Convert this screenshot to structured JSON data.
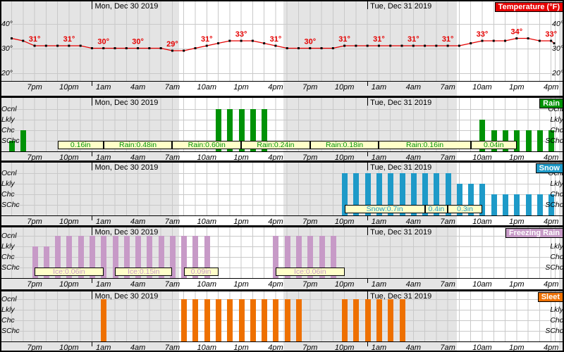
{
  "chart_data": {
    "type": "multi-panel weather timeline (line + bars)",
    "time_axis": {
      "ticks": [
        {
          "hour": 2,
          "label": "7pm"
        },
        {
          "hour": 5,
          "label": "10pm"
        },
        {
          "hour": 8,
          "label": "1am"
        },
        {
          "hour": 11,
          "label": "4am"
        },
        {
          "hour": 14,
          "label": "7am"
        },
        {
          "hour": 17,
          "label": "10am"
        },
        {
          "hour": 20,
          "label": "1pm"
        },
        {
          "hour": 23,
          "label": "4pm"
        },
        {
          "hour": 26,
          "label": "7pm"
        },
        {
          "hour": 29,
          "label": "10pm"
        },
        {
          "hour": 32,
          "label": "1am"
        },
        {
          "hour": 35,
          "label": "4am"
        },
        {
          "hour": 38,
          "label": "7am"
        },
        {
          "hour": 41,
          "label": "10am"
        },
        {
          "hour": 44,
          "label": "1pm"
        },
        {
          "hour": 47,
          "label": "4pm"
        }
      ],
      "day_headers": [
        {
          "hour": 7,
          "label": "Mon, Dec 30 2019"
        },
        {
          "hour": 31,
          "label": "Tue, Dec 31 2019"
        }
      ],
      "night_spans_hours": [
        [
          -1.1,
          14.6
        ],
        [
          23.7,
          38.8
        ],
        [
          47.7,
          50
        ]
      ]
    },
    "probability_categories": [
      "Ocnl",
      "Lkly",
      "Chc",
      "SChc"
    ],
    "panels": [
      {
        "id": "temperature",
        "title": "Temperature (°F)",
        "type": "line",
        "color": "#e60000",
        "unit": "°",
        "y_ticks": [
          {
            "label": "40°",
            "value": 40
          },
          {
            "label": "30°",
            "value": 30
          },
          {
            "label": "20°",
            "value": 20
          }
        ],
        "temps_hourly": [
          34,
          33,
          31,
          31,
          31,
          31,
          31,
          30,
          30,
          30,
          30,
          30,
          30,
          30,
          29,
          29,
          30,
          31,
          32,
          33,
          33,
          33,
          32,
          31,
          30,
          30,
          30,
          30,
          30,
          31,
          31,
          31,
          31,
          31,
          31,
          31,
          31,
          31,
          31,
          31,
          32,
          33,
          33,
          33,
          34,
          34,
          33,
          33,
          32
        ],
        "label_hours": [
          2,
          5,
          8,
          11,
          14,
          17,
          20,
          23,
          26,
          29,
          32,
          35,
          38,
          41,
          44,
          47
        ]
      },
      {
        "id": "rain",
        "title": "Rain",
        "type": "bars",
        "color": "#009206",
        "bar_runs": [
          {
            "from": 0,
            "to": 0,
            "level": "SChc"
          },
          {
            "from": 1,
            "to": 1,
            "level": "Chc"
          },
          {
            "from": 18,
            "to": 22,
            "level": "Ocnl"
          },
          {
            "from": 41,
            "to": 41,
            "level": "Lkly"
          },
          {
            "from": 42,
            "to": 47,
            "level": "Chc"
          }
        ],
        "amount_boxes": [
          {
            "from": 4,
            "to": 8,
            "text": "0.16in"
          },
          {
            "from": 8,
            "to": 14,
            "text": "Rain:0.48in"
          },
          {
            "from": 14,
            "to": 20,
            "text": "Rain:0.60in"
          },
          {
            "from": 20,
            "to": 26,
            "text": "Rain:0.24in"
          },
          {
            "from": 26,
            "to": 32,
            "text": "Rain:0.18in"
          },
          {
            "from": 32,
            "to": 40,
            "text": "Rain:0.16in"
          },
          {
            "from": 40,
            "to": 44,
            "text": "0.04in"
          }
        ]
      },
      {
        "id": "snow",
        "title": "Snow",
        "type": "bars",
        "color": "#1e9ac8",
        "bar_runs": [
          {
            "from": 29,
            "to": 38,
            "level": "Ocnl"
          },
          {
            "from": 39,
            "to": 41,
            "level": "Lkly"
          },
          {
            "from": 42,
            "to": 47,
            "level": "Chc"
          }
        ],
        "amount_boxes": [
          {
            "from": 29,
            "to": 36,
            "text": "Snow:0.7in"
          },
          {
            "from": 36,
            "to": 38,
            "text": "0.4in"
          },
          {
            "from": 38,
            "to": 41,
            "text": "0.3in"
          }
        ]
      },
      {
        "id": "freezing-rain",
        "title": "Freezing Rain",
        "type": "bars",
        "color": "#c79ac7",
        "bar_runs": [
          {
            "from": 2,
            "to": 3,
            "level": "Lkly"
          },
          {
            "from": 4,
            "to": 17,
            "level": "Ocnl"
          },
          {
            "from": 23,
            "to": 28,
            "level": "Ocnl"
          }
        ],
        "amount_boxes": [
          {
            "from": 2,
            "to": 8,
            "text": "Ice:0.06in"
          },
          {
            "from": 9,
            "to": 14,
            "text": "Ice:0.15in"
          },
          {
            "from": 15,
            "to": 18,
            "text": "0.09in"
          },
          {
            "from": 23,
            "to": 29,
            "text": "Ice:0.06in"
          }
        ]
      },
      {
        "id": "sleet",
        "title": "Sleet",
        "type": "bars",
        "color": "#ee7000",
        "bar_runs": [
          {
            "from": 8,
            "to": 8,
            "level": "Ocnl"
          },
          {
            "from": 15,
            "to": 25,
            "level": "Ocnl"
          },
          {
            "from": 29,
            "to": 34,
            "level": "Ocnl"
          }
        ],
        "amount_boxes": []
      }
    ]
  }
}
